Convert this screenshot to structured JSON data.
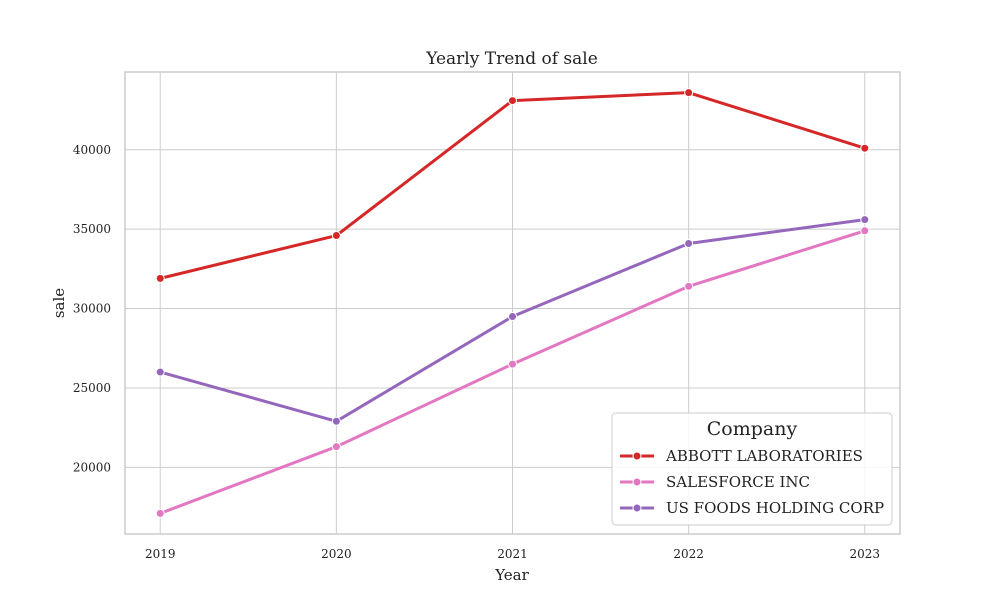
{
  "chart_data": {
    "type": "line",
    "title": "Yearly Trend of sale",
    "xlabel": "Year",
    "ylabel": "sale",
    "x": [
      2019,
      2020,
      2021,
      2022,
      2023
    ],
    "x_tick_labels": [
      "2019",
      "2020",
      "2021",
      "2022",
      "2023"
    ],
    "y_ticks": [
      20000,
      25000,
      30000,
      35000,
      40000
    ],
    "y_tick_labels": [
      "20000",
      "25000",
      "30000",
      "35000",
      "40000"
    ],
    "xlim": [
      2018.8,
      2023.2
    ],
    "ylim": [
      15800,
      44900
    ],
    "grid": true,
    "legend": {
      "title": "Company",
      "placement": "lower-right"
    },
    "series": [
      {
        "name": "ABBOTT LABORATORIES",
        "color": "#d62728",
        "values": [
          31900,
          34600,
          43100,
          43600,
          40100
        ]
      },
      {
        "name": "SALESFORCE INC",
        "color": "#e377c2",
        "values": [
          17100,
          21300,
          26500,
          31400,
          34900
        ]
      },
      {
        "name": "US FOODS HOLDING CORP",
        "color": "#9467bd",
        "values": [
          26000,
          22900,
          29500,
          34100,
          35600
        ]
      }
    ]
  }
}
